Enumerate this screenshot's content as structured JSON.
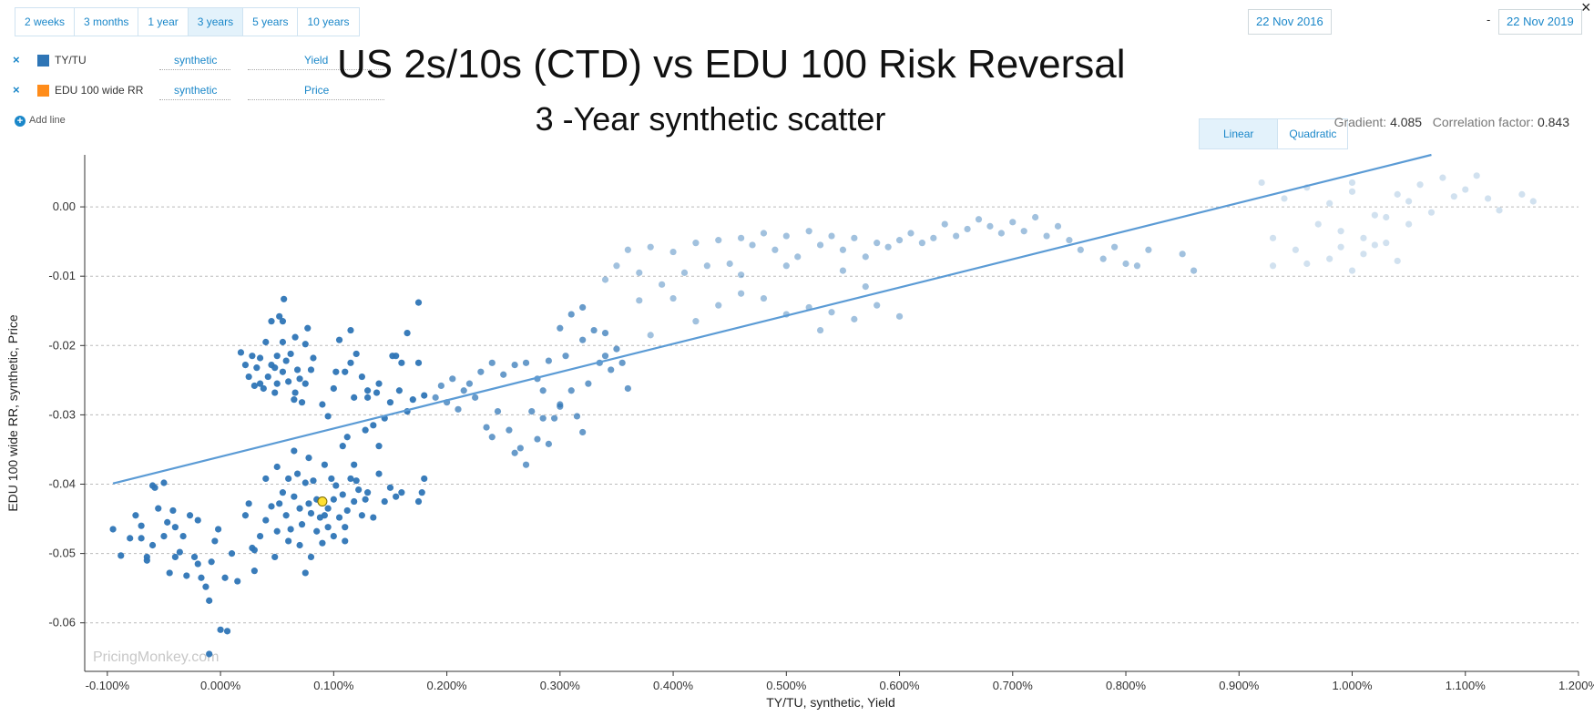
{
  "periods": [
    {
      "label": "2 weeks",
      "active": false
    },
    {
      "label": "3 months",
      "active": false
    },
    {
      "label": "1 year",
      "active": false
    },
    {
      "label": "3 years",
      "active": true
    },
    {
      "label": "5 years",
      "active": false
    },
    {
      "label": "10 years",
      "active": false
    }
  ],
  "date_range": {
    "start": "22 Nov 2016",
    "separator": "-",
    "end": "22 Nov 2019"
  },
  "close_label": "×",
  "series_list": [
    {
      "remove": "×",
      "name": "TY/TU",
      "color": "#2e75b6",
      "type": "synthetic",
      "field": "Yield"
    },
    {
      "remove": "×",
      "name": "EDU 100 wide RR",
      "color": "#ff8c1a",
      "type": "synthetic",
      "field": "Price"
    }
  ],
  "add_line_label": "Add line",
  "fit_options": [
    {
      "label": "Linear",
      "active": true
    },
    {
      "label": "Quadratic",
      "active": false
    }
  ],
  "stats": {
    "gradient_label": "Gradient:",
    "gradient_value": "4.085",
    "corr_label": "Correlation factor:",
    "corr_value": "0.843"
  },
  "chart_data": {
    "type": "scatter",
    "title": "US 2s/10s (CTD) vs EDU 100 Risk Reversal",
    "subtitle": "3 -Year synthetic scatter",
    "xlabel": "TY/TU, synthetic, Yield",
    "ylabel": "EDU 100 wide RR, synthetic, Price",
    "xlim": [
      -0.12,
      1.2
    ],
    "ylim": [
      -0.067,
      0.0075
    ],
    "xticks": [
      -0.1,
      0.0,
      0.1,
      0.2,
      0.3,
      0.4,
      0.5,
      0.6,
      0.7,
      0.8,
      0.9,
      1.0,
      1.1,
      1.2
    ],
    "xtick_labels": [
      "-0.100%",
      "0.000%",
      "0.100%",
      "0.200%",
      "0.300%",
      "0.400%",
      "0.500%",
      "0.600%",
      "0.700%",
      "0.800%",
      "0.900%",
      "1.000%",
      "1.100%",
      "1.200%"
    ],
    "yticks": [
      0.0,
      -0.01,
      -0.02,
      -0.03,
      -0.04,
      -0.05,
      -0.06
    ],
    "ytick_labels": [
      "0.00",
      "-0.01",
      "-0.02",
      "-0.03",
      "-0.04",
      "-0.05",
      "-0.06"
    ],
    "grid": "horizontal dashed",
    "point_color": "#2e75b6",
    "point_opacity_note": "older points lighter",
    "highlight_point": {
      "x": 0.09,
      "y": -0.0425,
      "color": "#ffe033"
    },
    "regression": {
      "type": "linear",
      "gradient": 4.085,
      "x": [
        -0.095,
        1.07
      ],
      "y": [
        -0.0399,
        0.0075
      ],
      "color": "#5b9bd5"
    },
    "watermark": "PricingMonkey.com",
    "points": [
      [
        -0.095,
        -0.0465
      ],
      [
        -0.088,
        -0.0503
      ],
      [
        -0.08,
        -0.0478
      ],
      [
        -0.075,
        -0.0445
      ],
      [
        -0.07,
        -0.046
      ],
      [
        -0.065,
        -0.051
      ],
      [
        -0.06,
        -0.0488
      ],
      [
        -0.058,
        -0.0405
      ],
      [
        -0.055,
        -0.0435
      ],
      [
        -0.05,
        -0.0475
      ],
      [
        -0.047,
        -0.0455
      ],
      [
        -0.045,
        -0.0528
      ],
      [
        -0.042,
        -0.0438
      ],
      [
        -0.04,
        -0.0505
      ],
      [
        -0.036,
        -0.0498
      ],
      [
        -0.033,
        -0.0475
      ],
      [
        -0.03,
        -0.0532
      ],
      [
        -0.027,
        -0.0445
      ],
      [
        -0.023,
        -0.0505
      ],
      [
        -0.02,
        -0.0452
      ],
      [
        -0.017,
        -0.0535
      ],
      [
        -0.013,
        -0.0548
      ],
      [
        -0.01,
        -0.0568
      ],
      [
        -0.008,
        -0.0512
      ],
      [
        -0.005,
        -0.0482
      ],
      [
        -0.002,
        -0.0465
      ],
      [
        0.0,
        -0.061
      ],
      [
        0.004,
        -0.0535
      ],
      [
        0.006,
        -0.0612
      ],
      [
        0.01,
        -0.05
      ],
      [
        -0.01,
        -0.0645
      ],
      [
        0.015,
        -0.054
      ],
      [
        -0.065,
        -0.0505
      ],
      [
        -0.07,
        -0.0478
      ],
      [
        -0.04,
        -0.0462
      ],
      [
        -0.06,
        -0.0402
      ],
      [
        -0.05,
        -0.0398
      ],
      [
        -0.02,
        -0.0515
      ],
      [
        0.018,
        -0.021
      ],
      [
        0.022,
        -0.0228
      ],
      [
        0.025,
        -0.0245
      ],
      [
        0.028,
        -0.0215
      ],
      [
        0.03,
        -0.0258
      ],
      [
        0.032,
        -0.0232
      ],
      [
        0.035,
        -0.0218
      ],
      [
        0.038,
        -0.0262
      ],
      [
        0.04,
        -0.0195
      ],
      [
        0.042,
        -0.0245
      ],
      [
        0.045,
        -0.0228
      ],
      [
        0.048,
        -0.0268
      ],
      [
        0.05,
        -0.0215
      ],
      [
        0.052,
        -0.0158
      ],
      [
        0.055,
        -0.0238
      ],
      [
        0.056,
        -0.0133
      ],
      [
        0.058,
        -0.0222
      ],
      [
        0.06,
        -0.0252
      ],
      [
        0.062,
        -0.0212
      ],
      [
        0.065,
        -0.0278
      ],
      [
        0.066,
        -0.0188
      ],
      [
        0.068,
        -0.0235
      ],
      [
        0.07,
        -0.0248
      ],
      [
        0.072,
        -0.0282
      ],
      [
        0.075,
        -0.0255
      ],
      [
        0.077,
        -0.0175
      ],
      [
        0.08,
        -0.0235
      ],
      [
        0.082,
        -0.0218
      ],
      [
        0.045,
        -0.0165
      ],
      [
        0.055,
        -0.0195
      ],
      [
        0.035,
        -0.0255
      ],
      [
        0.066,
        -0.0268
      ],
      [
        0.048,
        -0.0232
      ],
      [
        0.05,
        -0.0255
      ],
      [
        0.075,
        -0.0198
      ],
      [
        0.055,
        -0.0165
      ],
      [
        0.09,
        -0.0285
      ],
      [
        0.095,
        -0.0302
      ],
      [
        0.1,
        -0.0262
      ],
      [
        0.105,
        -0.0192
      ],
      [
        0.11,
        -0.0238
      ],
      [
        0.112,
        -0.0332
      ],
      [
        0.115,
        -0.0225
      ],
      [
        0.118,
        -0.0275
      ],
      [
        0.12,
        -0.0212
      ],
      [
        0.125,
        -0.0245
      ],
      [
        0.128,
        -0.0322
      ],
      [
        0.13,
        -0.0275
      ],
      [
        0.135,
        -0.0315
      ],
      [
        0.138,
        -0.0268
      ],
      [
        0.14,
        -0.0255
      ],
      [
        0.145,
        -0.0305
      ],
      [
        0.15,
        -0.0282
      ],
      [
        0.152,
        -0.0215
      ],
      [
        0.155,
        -0.0215
      ],
      [
        0.158,
        -0.0265
      ],
      [
        0.16,
        -0.0225
      ],
      [
        0.165,
        -0.0295
      ],
      [
        0.17,
        -0.0278
      ],
      [
        0.175,
        -0.0225
      ],
      [
        0.175,
        -0.0138
      ],
      [
        0.18,
        -0.0272
      ],
      [
        0.165,
        -0.0182
      ],
      [
        0.115,
        -0.0178
      ],
      [
        0.13,
        -0.0265
      ],
      [
        0.108,
        -0.0345
      ],
      [
        0.14,
        -0.0345
      ],
      [
        0.102,
        -0.0238
      ],
      [
        0.022,
        -0.0445
      ],
      [
        0.025,
        -0.0428
      ],
      [
        0.028,
        -0.0492
      ],
      [
        0.03,
        -0.0525
      ],
      [
        0.035,
        -0.0475
      ],
      [
        0.04,
        -0.0452
      ],
      [
        0.045,
        -0.0432
      ],
      [
        0.048,
        -0.0505
      ],
      [
        0.05,
        -0.0468
      ],
      [
        0.052,
        -0.0428
      ],
      [
        0.055,
        -0.0412
      ],
      [
        0.058,
        -0.0445
      ],
      [
        0.06,
        -0.0392
      ],
      [
        0.062,
        -0.0465
      ],
      [
        0.065,
        -0.0418
      ],
      [
        0.068,
        -0.0385
      ],
      [
        0.07,
        -0.0435
      ],
      [
        0.072,
        -0.0458
      ],
      [
        0.075,
        -0.0398
      ],
      [
        0.078,
        -0.0428
      ],
      [
        0.08,
        -0.0442
      ],
      [
        0.082,
        -0.0395
      ],
      [
        0.085,
        -0.0422
      ],
      [
        0.088,
        -0.0448
      ],
      [
        0.092,
        -0.0445
      ],
      [
        0.095,
        -0.0435
      ],
      [
        0.098,
        -0.0392
      ],
      [
        0.1,
        -0.0422
      ],
      [
        0.102,
        -0.0402
      ],
      [
        0.105,
        -0.0448
      ],
      [
        0.108,
        -0.0415
      ],
      [
        0.11,
        -0.0462
      ],
      [
        0.112,
        -0.0438
      ],
      [
        0.115,
        -0.0392
      ],
      [
        0.118,
        -0.0425
      ],
      [
        0.12,
        -0.0395
      ],
      [
        0.122,
        -0.0408
      ],
      [
        0.125,
        -0.0445
      ],
      [
        0.128,
        -0.0422
      ],
      [
        0.13,
        -0.0412
      ],
      [
        0.135,
        -0.0448
      ],
      [
        0.14,
        -0.0385
      ],
      [
        0.145,
        -0.0425
      ],
      [
        0.15,
        -0.0405
      ],
      [
        0.155,
        -0.0418
      ],
      [
        0.16,
        -0.0412
      ],
      [
        0.175,
        -0.0425
      ],
      [
        0.178,
        -0.0412
      ],
      [
        0.18,
        -0.0392
      ],
      [
        0.07,
        -0.0488
      ],
      [
        0.08,
        -0.0505
      ],
      [
        0.085,
        -0.0468
      ],
      [
        0.09,
        -0.0485
      ],
      [
        0.095,
        -0.0462
      ],
      [
        0.1,
        -0.0475
      ],
      [
        0.11,
        -0.0482
      ],
      [
        0.075,
        -0.0528
      ],
      [
        0.06,
        -0.0482
      ],
      [
        0.05,
        -0.0375
      ],
      [
        0.04,
        -0.0392
      ],
      [
        0.092,
        -0.0372
      ],
      [
        0.078,
        -0.0362
      ],
      [
        0.118,
        -0.0372
      ],
      [
        0.065,
        -0.0352
      ],
      [
        0.03,
        -0.0495
      ],
      [
        0.19,
        -0.0275
      ],
      [
        0.195,
        -0.0258
      ],
      [
        0.2,
        -0.0282
      ],
      [
        0.205,
        -0.0248
      ],
      [
        0.21,
        -0.0292
      ],
      [
        0.215,
        -0.0265
      ],
      [
        0.22,
        -0.0255
      ],
      [
        0.225,
        -0.0275
      ],
      [
        0.23,
        -0.0238
      ],
      [
        0.235,
        -0.0318
      ],
      [
        0.24,
        -0.0225
      ],
      [
        0.245,
        -0.0295
      ],
      [
        0.25,
        -0.0242
      ],
      [
        0.255,
        -0.0322
      ],
      [
        0.26,
        -0.0228
      ],
      [
        0.265,
        -0.0348
      ],
      [
        0.27,
        -0.0225
      ],
      [
        0.275,
        -0.0295
      ],
      [
        0.28,
        -0.0335
      ],
      [
        0.285,
        -0.0265
      ],
      [
        0.29,
        -0.0222
      ],
      [
        0.295,
        -0.0305
      ],
      [
        0.3,
        -0.0285
      ],
      [
        0.305,
        -0.0215
      ],
      [
        0.31,
        -0.0265
      ],
      [
        0.315,
        -0.0302
      ],
      [
        0.32,
        -0.0192
      ],
      [
        0.325,
        -0.0255
      ],
      [
        0.33,
        -0.0178
      ],
      [
        0.335,
        -0.0225
      ],
      [
        0.34,
        -0.0182
      ],
      [
        0.345,
        -0.0235
      ],
      [
        0.35,
        -0.0205
      ],
      [
        0.355,
        -0.0225
      ],
      [
        0.36,
        -0.0262
      ],
      [
        0.24,
        -0.0332
      ],
      [
        0.26,
        -0.0355
      ],
      [
        0.27,
        -0.0372
      ],
      [
        0.285,
        -0.0305
      ],
      [
        0.3,
        -0.0288
      ],
      [
        0.32,
        -0.0325
      ],
      [
        0.28,
        -0.0248
      ],
      [
        0.29,
        -0.0342
      ],
      [
        0.3,
        -0.0175
      ],
      [
        0.31,
        -0.0155
      ],
      [
        0.32,
        -0.0145
      ],
      [
        0.34,
        -0.0215
      ]
    ],
    "points_light": [
      [
        0.34,
        -0.0105
      ],
      [
        0.35,
        -0.0085
      ],
      [
        0.36,
        -0.0062
      ],
      [
        0.37,
        -0.0095
      ],
      [
        0.38,
        -0.0058
      ],
      [
        0.39,
        -0.0112
      ],
      [
        0.4,
        -0.0065
      ],
      [
        0.41,
        -0.0095
      ],
      [
        0.42,
        -0.0052
      ],
      [
        0.43,
        -0.0085
      ],
      [
        0.44,
        -0.0048
      ],
      [
        0.45,
        -0.0082
      ],
      [
        0.46,
        -0.0045
      ],
      [
        0.47,
        -0.0055
      ],
      [
        0.48,
        -0.0038
      ],
      [
        0.49,
        -0.0062
      ],
      [
        0.5,
        -0.0042
      ],
      [
        0.51,
        -0.0072
      ],
      [
        0.52,
        -0.0035
      ],
      [
        0.53,
        -0.0055
      ],
      [
        0.54,
        -0.0042
      ],
      [
        0.55,
        -0.0062
      ],
      [
        0.56,
        -0.0045
      ],
      [
        0.57,
        -0.0072
      ],
      [
        0.58,
        -0.0052
      ],
      [
        0.59,
        -0.0058
      ],
      [
        0.6,
        -0.0048
      ],
      [
        0.61,
        -0.0038
      ],
      [
        0.62,
        -0.0052
      ],
      [
        0.63,
        -0.0045
      ],
      [
        0.64,
        -0.0025
      ],
      [
        0.65,
        -0.0042
      ],
      [
        0.66,
        -0.0032
      ],
      [
        0.67,
        -0.0018
      ],
      [
        0.68,
        -0.0028
      ],
      [
        0.69,
        -0.0038
      ],
      [
        0.7,
        -0.0022
      ],
      [
        0.71,
        -0.0035
      ],
      [
        0.72,
        -0.0015
      ],
      [
        0.73,
        -0.0042
      ],
      [
        0.74,
        -0.0028
      ],
      [
        0.75,
        -0.0048
      ],
      [
        0.76,
        -0.0062
      ],
      [
        0.78,
        -0.0075
      ],
      [
        0.79,
        -0.0058
      ],
      [
        0.8,
        -0.0082
      ],
      [
        0.81,
        -0.0085
      ],
      [
        0.82,
        -0.0062
      ],
      [
        0.85,
        -0.0068
      ],
      [
        0.86,
        -0.0092
      ],
      [
        0.4,
        -0.0132
      ],
      [
        0.42,
        -0.0165
      ],
      [
        0.44,
        -0.0142
      ],
      [
        0.46,
        -0.0125
      ],
      [
        0.48,
        -0.0132
      ],
      [
        0.5,
        -0.0155
      ],
      [
        0.52,
        -0.0145
      ],
      [
        0.53,
        -0.0178
      ],
      [
        0.54,
        -0.0152
      ],
      [
        0.56,
        -0.0162
      ],
      [
        0.58,
        -0.0142
      ],
      [
        0.6,
        -0.0158
      ],
      [
        0.46,
        -0.0098
      ],
      [
        0.5,
        -0.0085
      ],
      [
        0.55,
        -0.0092
      ],
      [
        0.57,
        -0.0115
      ],
      [
        0.37,
        -0.0135
      ],
      [
        0.38,
        -0.0185
      ],
      [
        0.92,
        0.0035
      ],
      [
        0.93,
        -0.0045
      ],
      [
        0.94,
        0.0012
      ],
      [
        0.95,
        -0.0062
      ],
      [
        0.96,
        0.0028
      ],
      [
        0.97,
        -0.0025
      ],
      [
        0.98,
        0.0005
      ],
      [
        0.99,
        -0.0058
      ],
      [
        1.0,
        0.0022
      ],
      [
        1.01,
        -0.0045
      ],
      [
        1.02,
        -0.0012
      ],
      [
        1.03,
        -0.0052
      ],
      [
        1.04,
        0.0018
      ],
      [
        1.05,
        -0.0025
      ],
      [
        1.06,
        0.0032
      ],
      [
        1.07,
        -0.0008
      ],
      [
        1.08,
        0.0042
      ],
      [
        1.09,
        0.0015
      ],
      [
        1.1,
        0.0025
      ],
      [
        1.11,
        0.0045
      ],
      [
        1.12,
        0.0012
      ],
      [
        1.13,
        -0.0005
      ],
      [
        1.15,
        0.0018
      ],
      [
        1.16,
        0.0008
      ],
      [
        0.93,
        -0.0085
      ],
      [
        0.96,
        -0.0082
      ],
      [
        0.98,
        -0.0075
      ],
      [
        1.0,
        -0.0092
      ],
      [
        1.01,
        -0.0068
      ],
      [
        1.02,
        -0.0055
      ],
      [
        1.04,
        -0.0078
      ],
      [
        0.99,
        -0.0035
      ],
      [
        1.03,
        -0.0015
      ],
      [
        1.05,
        0.0008
      ],
      [
        1.0,
        0.0035
      ]
    ]
  }
}
